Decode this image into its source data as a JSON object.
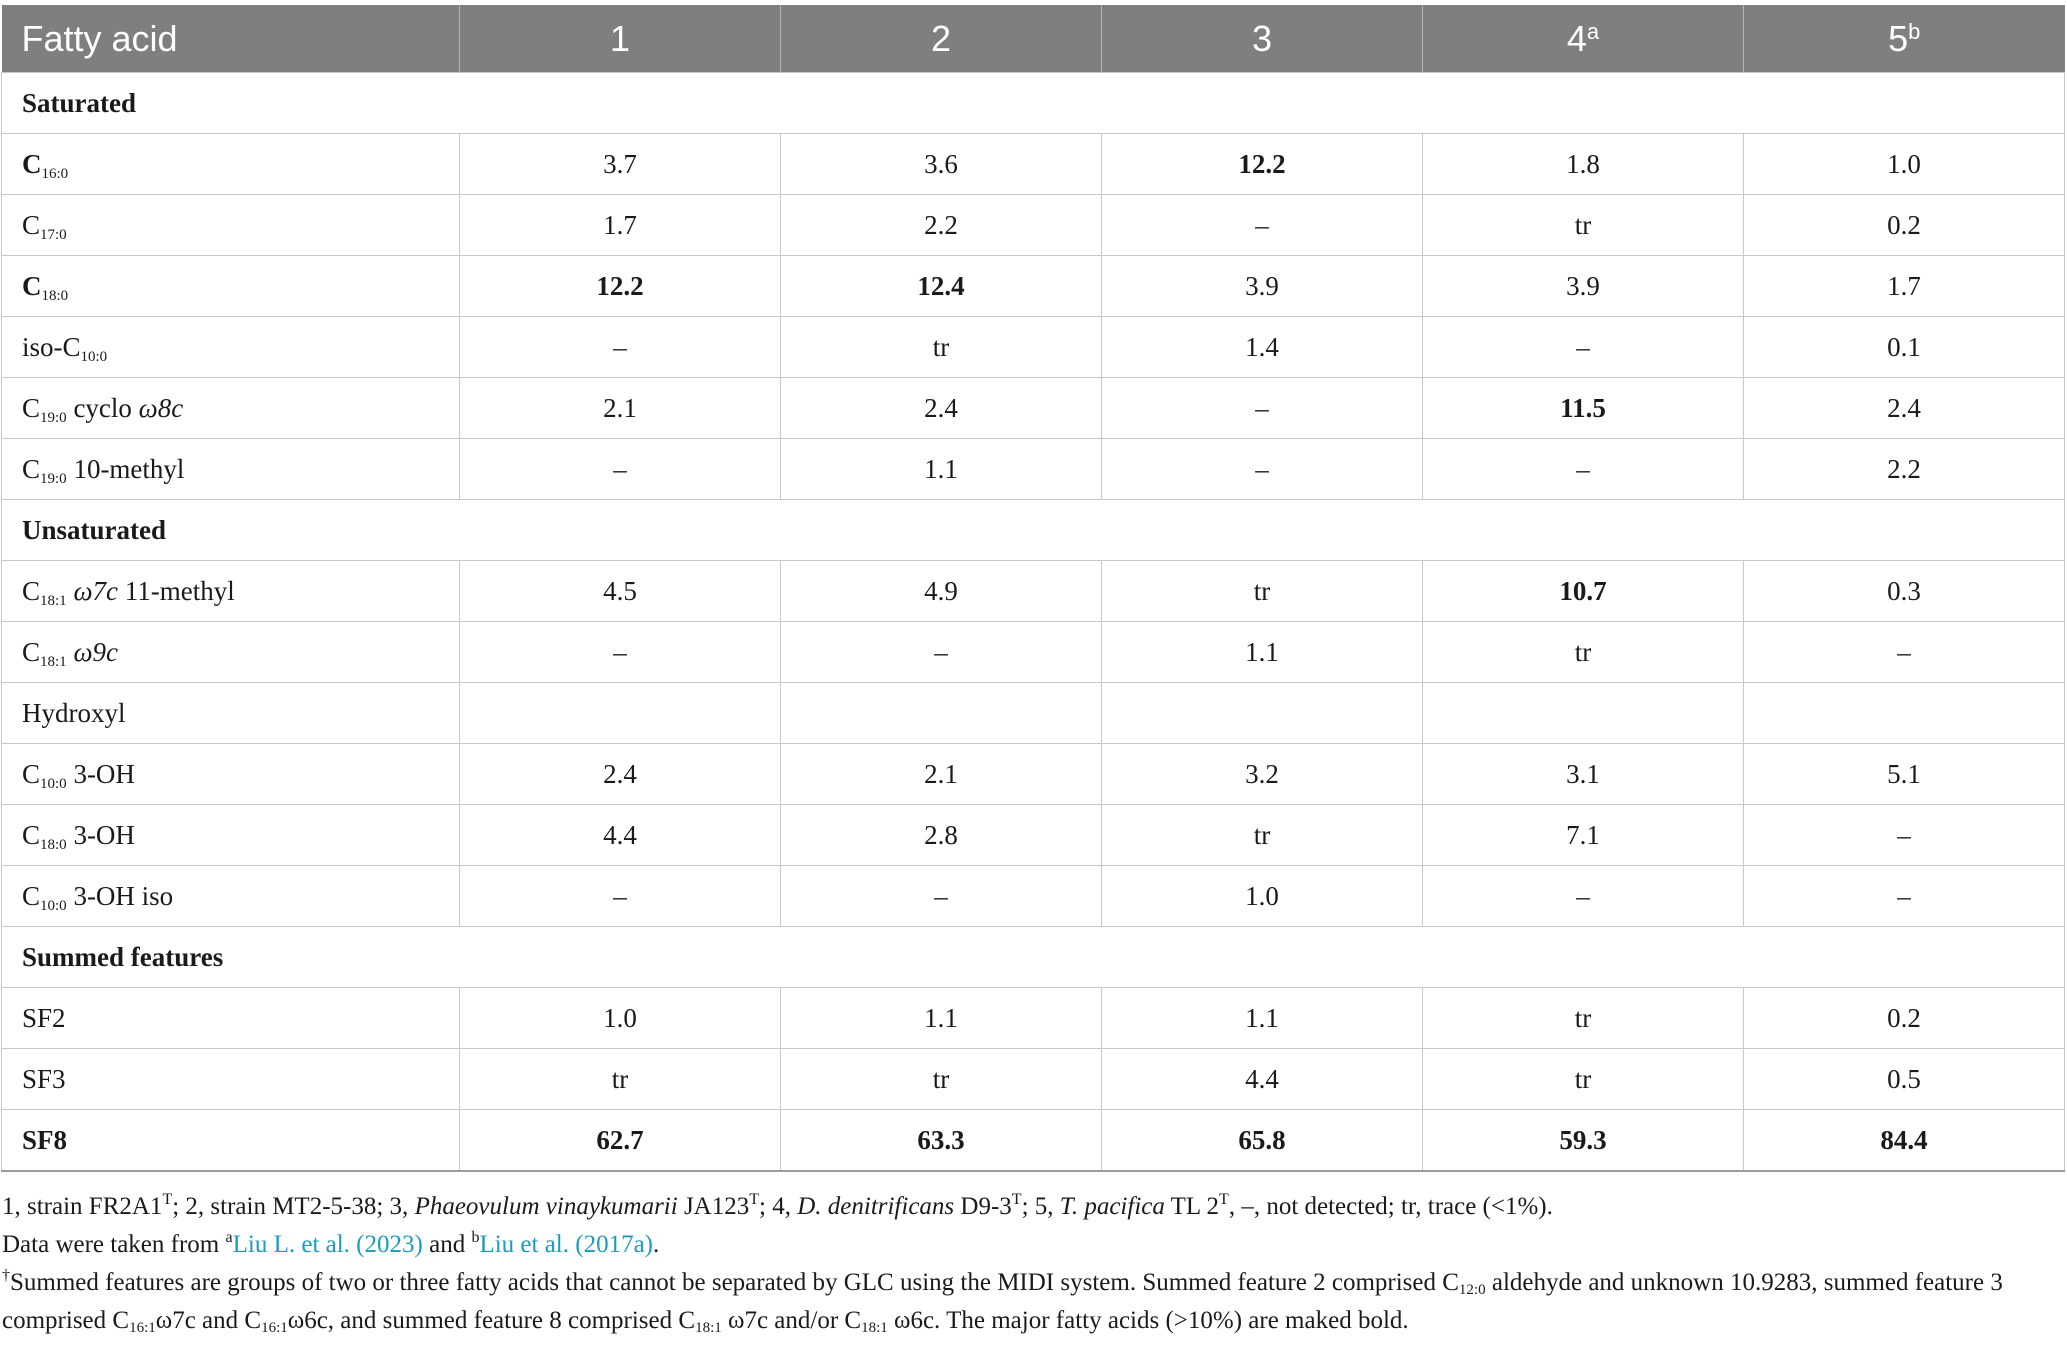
{
  "header": {
    "label": "Fatty acid",
    "c1": "1",
    "c2": "2",
    "c3": "3",
    "c4": "4",
    "c4sup": "a",
    "c5": "5",
    "c5sup": "b"
  },
  "rows": [
    {
      "t": "section",
      "label": "Saturated"
    },
    {
      "t": "data",
      "base": "C",
      "sub": "16:0",
      "rest": "",
      "lbold": true,
      "v": [
        "3.7",
        "3.6",
        "12.2",
        "1.8",
        "1.0"
      ],
      "bold": [
        false,
        false,
        true,
        false,
        false
      ]
    },
    {
      "t": "data",
      "base": "C",
      "sub": "17:0",
      "rest": "",
      "lbold": false,
      "v": [
        "1.7",
        "2.2",
        "–",
        "tr",
        "0.2"
      ],
      "bold": [
        false,
        false,
        false,
        false,
        false
      ]
    },
    {
      "t": "data",
      "base": "C",
      "sub": "18:0",
      "rest": "",
      "lbold": true,
      "v": [
        "12.2",
        "12.4",
        "3.9",
        "3.9",
        "1.7"
      ],
      "bold": [
        true,
        true,
        false,
        false,
        false
      ]
    },
    {
      "t": "data",
      "base": "iso-C",
      "sub": "10:0",
      "rest": "",
      "lbold": false,
      "v": [
        "–",
        "tr",
        "1.4",
        "–",
        "0.1"
      ],
      "bold": [
        false,
        false,
        false,
        false,
        false
      ]
    },
    {
      "t": "data",
      "base": "C",
      "sub": "19:0",
      "rest": " cyclo ",
      "ital": "ω8c",
      "lbold": false,
      "v": [
        "2.1",
        "2.4",
        "–",
        "11.5",
        "2.4"
      ],
      "bold": [
        false,
        false,
        false,
        true,
        false
      ]
    },
    {
      "t": "data",
      "base": "C",
      "sub": "19:0",
      "rest": " 10-methyl",
      "lbold": false,
      "v": [
        "–",
        "1.1",
        "–",
        "–",
        "2.2"
      ],
      "bold": [
        false,
        false,
        false,
        false,
        false
      ]
    },
    {
      "t": "section",
      "label": "Unsaturated"
    },
    {
      "t": "data",
      "base": "C",
      "sub": "18:1",
      "rest": " ",
      "ital": "ω7c",
      "rest2": " 11-methyl",
      "lbold": false,
      "v": [
        "4.5",
        "4.9",
        "tr",
        "10.7",
        "0.3"
      ],
      "bold": [
        false,
        false,
        false,
        true,
        false
      ]
    },
    {
      "t": "data",
      "base": "C",
      "sub": "18:1",
      "rest": " ",
      "ital": "ω9c",
      "lbold": false,
      "v": [
        "–",
        "–",
        "1.1",
        "tr",
        "–"
      ],
      "bold": [
        false,
        false,
        false,
        false,
        false
      ]
    },
    {
      "t": "data",
      "base": "Hydroxyl",
      "sub": "",
      "rest": "",
      "lbold": false,
      "v": [
        "",
        "",
        "",
        "",
        ""
      ],
      "bold": [
        false,
        false,
        false,
        false,
        false
      ]
    },
    {
      "t": "data",
      "base": "C",
      "sub": "10:0",
      "rest": " 3-OH",
      "lbold": false,
      "v": [
        "2.4",
        "2.1",
        "3.2",
        "3.1",
        "5.1"
      ],
      "bold": [
        false,
        false,
        false,
        false,
        false
      ]
    },
    {
      "t": "data",
      "base": "C",
      "sub": "18:0",
      "rest": " 3-OH",
      "lbold": false,
      "v": [
        "4.4",
        "2.8",
        "tr",
        "7.1",
        "–"
      ],
      "bold": [
        false,
        false,
        false,
        false,
        false
      ]
    },
    {
      "t": "data",
      "base": "C",
      "sub": "10:0",
      "rest": " 3-OH iso",
      "lbold": false,
      "v": [
        "–",
        "–",
        "1.0",
        "–",
        "–"
      ],
      "bold": [
        false,
        false,
        false,
        false,
        false
      ]
    },
    {
      "t": "section",
      "label": "Summed features"
    },
    {
      "t": "data",
      "base": "SF2",
      "sub": "",
      "rest": "",
      "lbold": false,
      "v": [
        "1.0",
        "1.1",
        "1.1",
        "tr",
        "0.2"
      ],
      "bold": [
        false,
        false,
        false,
        false,
        false
      ]
    },
    {
      "t": "data",
      "base": "SF3",
      "sub": "",
      "rest": "",
      "lbold": false,
      "v": [
        "tr",
        "tr",
        "4.4",
        "tr",
        "0.5"
      ],
      "bold": [
        false,
        false,
        false,
        false,
        false
      ]
    },
    {
      "t": "data",
      "base": "SF8",
      "sub": "",
      "rest": "",
      "lbold": true,
      "v": [
        "62.7",
        "63.3",
        "65.8",
        "59.3",
        "84.4"
      ],
      "bold": [
        true,
        true,
        true,
        true,
        true
      ]
    }
  ],
  "footnotes": {
    "f1": {
      "a": "1, strain FR2A1",
      "a_sup": "T",
      "b": "; 2, strain MT2-5-38; 3, ",
      "b_it": "Phaeovulum vinaykumarii",
      "c": " JA123",
      "c_sup": "T",
      "d": "; 4, ",
      "d_it": "D. denitrificans",
      "e": " D9-3",
      "e_sup": "T",
      "f": "; 5, ",
      "f_it": "T. pacifica",
      "g": " TL 2",
      "g_sup": "T",
      "h": ", –, not detected; tr, trace (<1%)."
    },
    "f2": {
      "a": "Data were taken from ",
      "sup_a": "a",
      "link1": "Liu L. et al. (2023)",
      "mid": " and ",
      "sup_b": "b",
      "link2": "Liu et al. (2017a)",
      "end": "."
    },
    "f3": {
      "dagger": "†",
      "a": "Summed features are groups of two or three fatty acids that cannot be separated by GLC using the MIDI system. Summed feature 2 comprised C",
      "s1": "12:0",
      "b": " aldehyde and unknown 10.9283, summed feature 3 comprised C",
      "s2": "16:1",
      "c": "ω7c and C",
      "s3": "16:1",
      "d": "ω6c, and summed feature 8 comprised C",
      "s4": "18:1",
      "e": " ω7c and/or C",
      "s5": "18:1",
      "f": " ω6c. The major fatty acids (>10%) are maked bold."
    }
  }
}
